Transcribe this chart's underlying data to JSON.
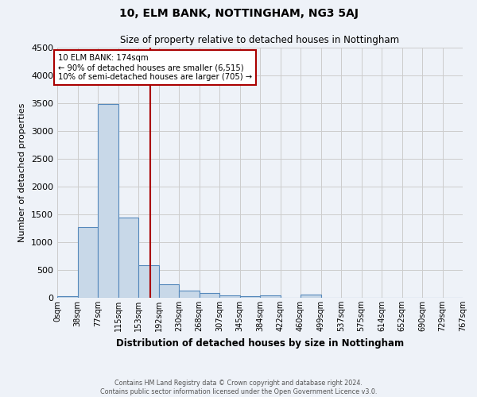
{
  "title": "10, ELM BANK, NOTTINGHAM, NG3 5AJ",
  "subtitle": "Size of property relative to detached houses in Nottingham",
  "xlabel": "Distribution of detached houses by size in Nottingham",
  "ylabel": "Number of detached properties",
  "footer_line1": "Contains HM Land Registry data © Crown copyright and database right 2024.",
  "footer_line2": "Contains public sector information licensed under the Open Government Licence v3.0.",
  "bin_labels": [
    "0sqm",
    "38sqm",
    "77sqm",
    "115sqm",
    "153sqm",
    "192sqm",
    "230sqm",
    "268sqm",
    "307sqm",
    "345sqm",
    "384sqm",
    "422sqm",
    "460sqm",
    "499sqm",
    "537sqm",
    "575sqm",
    "614sqm",
    "652sqm",
    "690sqm",
    "729sqm",
    "767sqm"
  ],
  "bar_values": [
    30,
    1270,
    3480,
    1450,
    580,
    240,
    130,
    80,
    40,
    30,
    50,
    0,
    55,
    0,
    0,
    0,
    0,
    0,
    0,
    0
  ],
  "bar_color": "#c8d8e8",
  "bar_edge_color": "#5588bb",
  "grid_color": "#cccccc",
  "bg_color": "#eef2f8",
  "vline_x": 174,
  "vline_color": "#aa0000",
  "annotation_line1": "10 ELM BANK: 174sqm",
  "annotation_line2": "← 90% of detached houses are smaller (6,515)",
  "annotation_line3": "10% of semi-detached houses are larger (705) →",
  "annotation_box_color": "#ffffff",
  "annotation_box_edge": "#aa0000",
  "ylim": [
    0,
    4500
  ],
  "bin_size": 38,
  "num_bins": 20
}
